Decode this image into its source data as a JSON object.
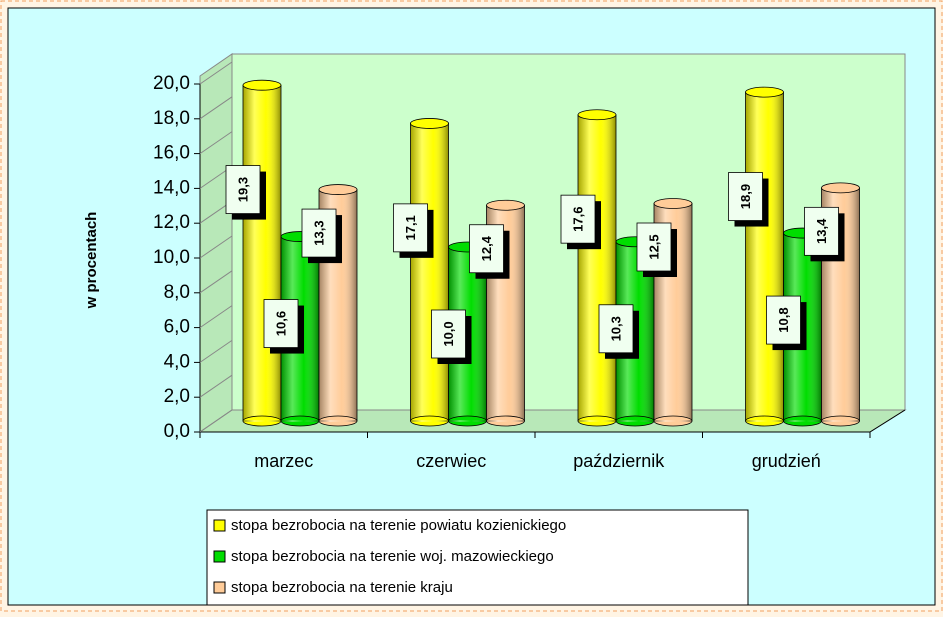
{
  "chart_data": {
    "type": "bar",
    "ylabel": "w procentach",
    "categories": [
      "marzec",
      "czerwiec",
      "październik",
      "grudzień"
    ],
    "series": [
      {
        "name": "stopa bezrobocia na terenie powiatu kozienickiego",
        "color": "#ffff00",
        "values": [
          19.3,
          17.1,
          17.6,
          18.9
        ],
        "value_labels": [
          "19,3",
          "17,1",
          "17,6",
          "18,9"
        ]
      },
      {
        "name": "stopa bezrobocia na terenie woj. mazowieckiego",
        "color": "#00dd00",
        "values": [
          10.6,
          10.0,
          10.3,
          10.8
        ],
        "value_labels": [
          "10,6",
          "10,0",
          "10,3",
          "10,8"
        ]
      },
      {
        "name": "stopa bezrobocia na terenie kraju",
        "color": "#ffcc99",
        "values": [
          13.3,
          12.4,
          12.5,
          13.4
        ],
        "value_labels": [
          "13,3",
          "12,4",
          "12,5",
          "13,4"
        ]
      }
    ],
    "ylim": [
      0,
      20
    ],
    "yticks": [
      {
        "value": 0,
        "label": "0,0"
      },
      {
        "value": 2,
        "label": "2,0"
      },
      {
        "value": 4,
        "label": "4,0"
      },
      {
        "value": 6,
        "label": "6,0"
      },
      {
        "value": 8,
        "label": "8,0"
      },
      {
        "value": 10,
        "label": "10,0"
      },
      {
        "value": 12,
        "label": "12,0"
      },
      {
        "value": 14,
        "label": "14,0"
      },
      {
        "value": 16,
        "label": "16,0"
      },
      {
        "value": 18,
        "label": "18,0"
      },
      {
        "value": 20,
        "label": "20,0"
      }
    ],
    "legend": "bottom"
  }
}
